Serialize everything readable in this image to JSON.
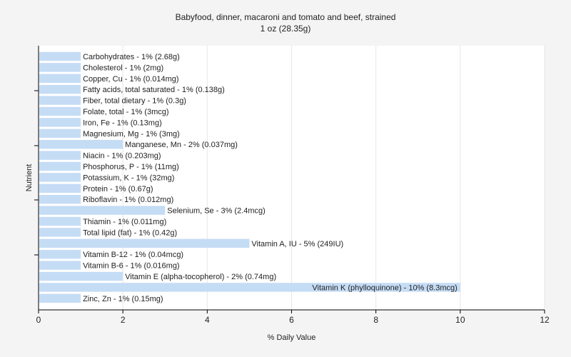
{
  "chart_data": {
    "type": "bar",
    "orientation": "horizontal",
    "title": "Babyfood, dinner, macaroni and tomato and beef, strained",
    "subtitle": "1 oz (28.35g)",
    "xlabel": "% Daily Value",
    "ylabel": "Nutrient",
    "xlim": [
      0,
      12
    ],
    "xticks": [
      "0",
      "2",
      "4",
      "6",
      "8",
      "10",
      "12"
    ],
    "grid": "vertical",
    "bar_color": "#c5dcf5",
    "categories": [
      "Carbohydrates",
      "Cholesterol",
      "Copper, Cu",
      "Fatty acids, total saturated",
      "Fiber, total dietary",
      "Folate, total",
      "Iron, Fe",
      "Magnesium, Mg",
      "Manganese, Mn",
      "Niacin",
      "Phosphorus, P",
      "Potassium, K",
      "Protein",
      "Riboflavin",
      "Selenium, Se",
      "Thiamin",
      "Total lipid (fat)",
      "Vitamin A, IU",
      "Vitamin B-12",
      "Vitamin B-6",
      "Vitamin E (alpha-tocopherol)",
      "Vitamin K (phylloquinone)",
      "Zinc, Zn"
    ],
    "values": [
      1,
      1,
      1,
      1,
      1,
      1,
      1,
      1,
      2,
      1,
      1,
      1,
      1,
      1,
      3,
      1,
      1,
      5,
      1,
      1,
      2,
      10,
      1
    ],
    "labels": [
      "Carbohydrates - 1% (2.68g)",
      "Cholesterol - 1% (2mg)",
      "Copper, Cu - 1% (0.014mg)",
      "Fatty acids, total saturated - 1% (0.138g)",
      "Fiber, total dietary - 1% (0.3g)",
      "Folate, total - 1% (3mcg)",
      "Iron, Fe - 1% (0.13mg)",
      "Magnesium, Mg - 1% (3mg)",
      "Manganese, Mn - 2% (0.037mg)",
      "Niacin - 1% (0.203mg)",
      "Phosphorus, P - 1% (11mg)",
      "Potassium, K - 1% (32mg)",
      "Protein - 1% (0.67g)",
      "Riboflavin - 1% (0.012mg)",
      "Selenium, Se - 3% (2.4mcg)",
      "Thiamin - 1% (0.011mg)",
      "Total lipid (fat) - 1% (0.42g)",
      "Vitamin A, IU - 5% (249IU)",
      "Vitamin B-12 - 1% (0.04mcg)",
      "Vitamin B-6 - 1% (0.016mg)",
      "Vitamin E (alpha-tocopherol) - 2% (0.74mg)",
      "Vitamin K (phylloquinone) - 10% (8.3mcg)",
      "Zinc, Zn - 1% (0.15mg)"
    ]
  }
}
